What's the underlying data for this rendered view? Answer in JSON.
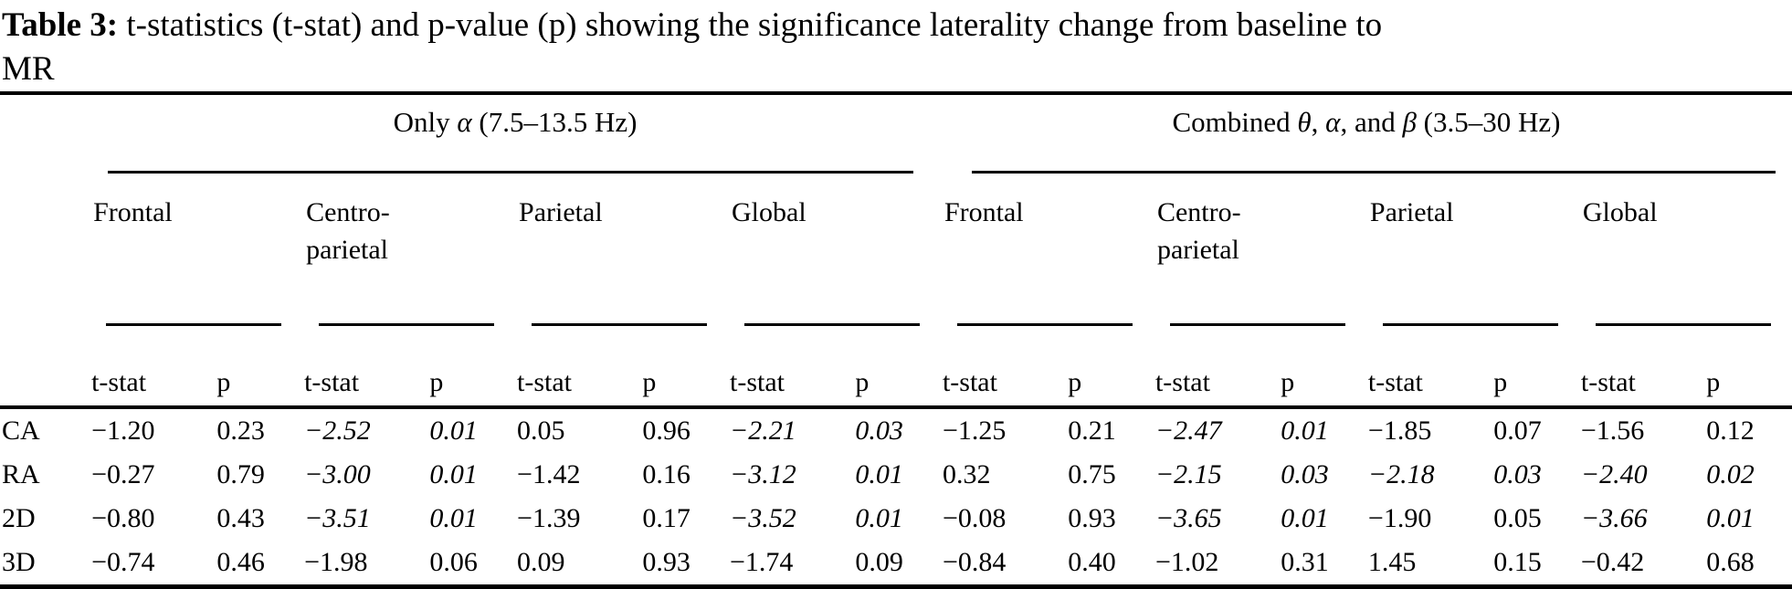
{
  "colors": {
    "text": "#000000",
    "background": "#ffffff",
    "rules": "#000000"
  },
  "title": {
    "label": "Table 3:",
    "line1_rest": " t-statistics (t-stat) and p-value (p) showing the significance laterality change from baseline to",
    "line2": "MR"
  },
  "table": {
    "group_headers": [
      {
        "parts": [
          {
            "t": "Only ",
            "greek": false
          },
          {
            "t": "α",
            "greek": true
          },
          {
            "t": " (7.5–13.5 Hz)",
            "greek": false
          }
        ]
      },
      {
        "parts": [
          {
            "t": "Combined ",
            "greek": false
          },
          {
            "t": "θ",
            "greek": true
          },
          {
            "t": ", ",
            "greek": false
          },
          {
            "t": "α",
            "greek": true
          },
          {
            "t": ", and ",
            "greek": false
          },
          {
            "t": "β",
            "greek": true
          },
          {
            "t": " (3.5–30 Hz)",
            "greek": false
          }
        ]
      }
    ],
    "region_headers": [
      "Frontal",
      "Centro-\nparietal",
      "Parietal",
      "Global",
      "Frontal",
      "Centro-\nparietal",
      "Parietal",
      "Global"
    ],
    "stat_header": "t-stat",
    "p_header": "p",
    "rows": [
      {
        "label": "CA",
        "values": [
          {
            "v": "−1.20",
            "i": false
          },
          {
            "v": "0.23",
            "i": false
          },
          {
            "v": "−2.52",
            "i": true
          },
          {
            "v": "0.01",
            "i": true
          },
          {
            "v": "0.05",
            "i": false
          },
          {
            "v": "0.96",
            "i": false
          },
          {
            "v": "−2.21",
            "i": true
          },
          {
            "v": "0.03",
            "i": true
          },
          {
            "v": "−1.25",
            "i": false
          },
          {
            "v": "0.21",
            "i": false
          },
          {
            "v": "−2.47",
            "i": true
          },
          {
            "v": "0.01",
            "i": true
          },
          {
            "v": "−1.85",
            "i": false
          },
          {
            "v": "0.07",
            "i": false
          },
          {
            "v": "−1.56",
            "i": false
          },
          {
            "v": "0.12",
            "i": false
          }
        ]
      },
      {
        "label": "RA",
        "values": [
          {
            "v": "−0.27",
            "i": false
          },
          {
            "v": "0.79",
            "i": false
          },
          {
            "v": "−3.00",
            "i": true
          },
          {
            "v": "0.01",
            "i": true
          },
          {
            "v": "−1.42",
            "i": false
          },
          {
            "v": "0.16",
            "i": false
          },
          {
            "v": "−3.12",
            "i": true
          },
          {
            "v": "0.01",
            "i": true
          },
          {
            "v": "0.32",
            "i": false
          },
          {
            "v": "0.75",
            "i": false
          },
          {
            "v": "−2.15",
            "i": true
          },
          {
            "v": "0.03",
            "i": true
          },
          {
            "v": "−2.18",
            "i": true
          },
          {
            "v": "0.03",
            "i": true
          },
          {
            "v": "−2.40",
            "i": true
          },
          {
            "v": "0.02",
            "i": true
          }
        ]
      },
      {
        "label": "2D",
        "values": [
          {
            "v": "−0.80",
            "i": false
          },
          {
            "v": "0.43",
            "i": false
          },
          {
            "v": "−3.51",
            "i": true
          },
          {
            "v": "0.01",
            "i": true
          },
          {
            "v": "−1.39",
            "i": false
          },
          {
            "v": "0.17",
            "i": false
          },
          {
            "v": "−3.52",
            "i": true
          },
          {
            "v": "0.01",
            "i": true
          },
          {
            "v": "−0.08",
            "i": false
          },
          {
            "v": "0.93",
            "i": false
          },
          {
            "v": "−3.65",
            "i": true
          },
          {
            "v": "0.01",
            "i": true
          },
          {
            "v": "−1.90",
            "i": false
          },
          {
            "v": "0.05",
            "i": false
          },
          {
            "v": "−3.66",
            "i": true
          },
          {
            "v": "0.01",
            "i": true
          }
        ]
      },
      {
        "label": "3D",
        "values": [
          {
            "v": "−0.74",
            "i": false
          },
          {
            "v": "0.46",
            "i": false
          },
          {
            "v": "−1.98",
            "i": false
          },
          {
            "v": "0.06",
            "i": false
          },
          {
            "v": "0.09",
            "i": false
          },
          {
            "v": "0.93",
            "i": false
          },
          {
            "v": "−1.74",
            "i": false
          },
          {
            "v": "0.09",
            "i": false
          },
          {
            "v": "−0.84",
            "i": false
          },
          {
            "v": "0.40",
            "i": false
          },
          {
            "v": "−1.02",
            "i": false
          },
          {
            "v": "0.31",
            "i": false
          },
          {
            "v": "1.45",
            "i": false
          },
          {
            "v": "0.15",
            "i": false
          },
          {
            "v": "−0.42",
            "i": false
          },
          {
            "v": "0.68",
            "i": false
          }
        ]
      }
    ]
  }
}
